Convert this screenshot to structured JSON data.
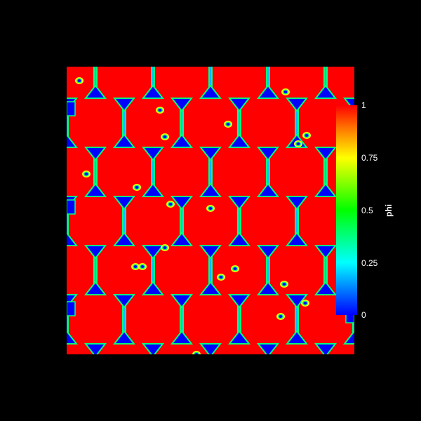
{
  "colorbar": {
    "title": "phi",
    "ticks": [
      "1",
      "0.75",
      "0.5",
      "0.25",
      "0"
    ],
    "colors": [
      "#ff0000",
      "#ff8000",
      "#ffff00",
      "#00ff00",
      "#00ffff",
      "#0000ff"
    ]
  },
  "field": {
    "background_phase_color": "#ff0000",
    "minor_phase_color": "#0000ff",
    "interface_color": "#00ff80"
  }
}
